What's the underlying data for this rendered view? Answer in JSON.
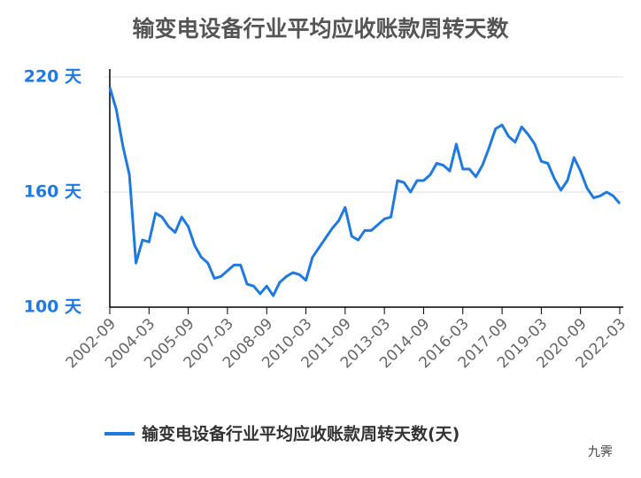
{
  "chart_data": {
    "type": "line",
    "title": "输变电设备行业平均应收账款周转天数",
    "categories": [
      "2002-09",
      null,
      null,
      null,
      null,
      null,
      "2004-03",
      null,
      null,
      null,
      null,
      null,
      "2005-09",
      null,
      null,
      null,
      null,
      null,
      "2007-03",
      null,
      null,
      null,
      null,
      null,
      "2008-09",
      null,
      null,
      null,
      null,
      null,
      "2010-03",
      null,
      null,
      null,
      null,
      null,
      "2011-09",
      null,
      null,
      null,
      null,
      null,
      "2013-03",
      null,
      null,
      null,
      null,
      null,
      "2014-09",
      null,
      null,
      null,
      null,
      null,
      "2016-03",
      null,
      null,
      null,
      null,
      null,
      "2017-09",
      null,
      null,
      null,
      null,
      null,
      "2019-03",
      null,
      null,
      null,
      null,
      null,
      "2020-09",
      null,
      null,
      null,
      null,
      null,
      "2022-03"
    ],
    "series": [
      {
        "name": "输变电设备行业平均应收账款周转天数(天)",
        "color": "#1f7ae0",
        "values": [
          214.6,
          203,
          184,
          169,
          123,
          135,
          134,
          149,
          147,
          142,
          139,
          147,
          142,
          132,
          126,
          123,
          115,
          116,
          119,
          122,
          122,
          112,
          111,
          107,
          111,
          106,
          113,
          116,
          118,
          117,
          114,
          126,
          131,
          136,
          141,
          145,
          152,
          137,
          135,
          140,
          140,
          143,
          146,
          147,
          166,
          165,
          160,
          166,
          166,
          169,
          175,
          174,
          171,
          185,
          172,
          172,
          168,
          174,
          183,
          193,
          195,
          189,
          186,
          194,
          190,
          185,
          176,
          175,
          167,
          161,
          166,
          178,
          171,
          162,
          157,
          158,
          160,
          158,
          154
        ]
      }
    ],
    "ylim": [
      100,
      220
    ],
    "yticks": [
      {
        "value": 100,
        "label": "100 天"
      },
      {
        "value": 160,
        "label": "160 天"
      },
      {
        "value": 220,
        "label": "220 天"
      }
    ],
    "grid": true,
    "legend": "bottom",
    "watermark": "九霁"
  }
}
